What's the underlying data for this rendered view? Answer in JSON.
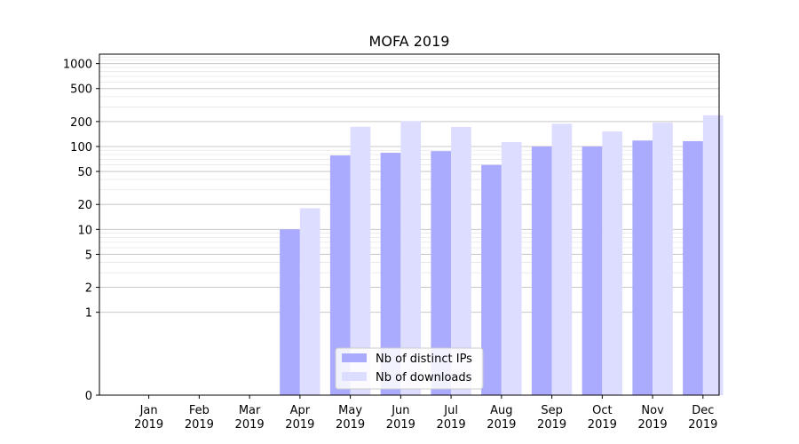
{
  "chart_data": {
    "type": "bar",
    "title": "MOFA 2019",
    "xlabel": "",
    "ylabel": "",
    "yscale": "symlog",
    "ylim": [
      0,
      1300
    ],
    "y_ticks": [
      0,
      1,
      2,
      5,
      10,
      20,
      50,
      100,
      200,
      500,
      1000
    ],
    "grid": "horizontal",
    "legend_position": "lower-center",
    "categories": [
      {
        "month": "Jan",
        "year": "2019"
      },
      {
        "month": "Feb",
        "year": "2019"
      },
      {
        "month": "Mar",
        "year": "2019"
      },
      {
        "month": "Apr",
        "year": "2019"
      },
      {
        "month": "May",
        "year": "2019"
      },
      {
        "month": "Jun",
        "year": "2019"
      },
      {
        "month": "Jul",
        "year": "2019"
      },
      {
        "month": "Aug",
        "year": "2019"
      },
      {
        "month": "Sep",
        "year": "2019"
      },
      {
        "month": "Oct",
        "year": "2019"
      },
      {
        "month": "Nov",
        "year": "2019"
      },
      {
        "month": "Dec",
        "year": "2019"
      }
    ],
    "series": [
      {
        "name": "Nb of distinct IPs",
        "color": "#aaaaff",
        "values": [
          0,
          0,
          0,
          10,
          78,
          84,
          88,
          60,
          100,
          100,
          118,
          116
        ]
      },
      {
        "name": "Nb of downloads",
        "color": "#ddddff",
        "values": [
          0,
          0,
          0,
          18,
          173,
          202,
          172,
          113,
          188,
          152,
          194,
          238
        ]
      }
    ]
  }
}
